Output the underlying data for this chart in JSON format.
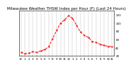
{
  "title": "Milwaukee Weather THSW Index per Hour (F) (Last 24 Hours)",
  "title_fontsize": 4.0,
  "background_color": "#ffffff",
  "line_color": "#ff0000",
  "marker": "s",
  "marker_size": 1.2,
  "linestyle": "--",
  "linewidth": 0.7,
  "hours": [
    0,
    1,
    2,
    3,
    4,
    5,
    6,
    7,
    8,
    9,
    10,
    11,
    12,
    13,
    14,
    15,
    16,
    17,
    18,
    19,
    20,
    21,
    22,
    23
  ],
  "values": [
    28,
    25,
    26,
    30,
    28,
    32,
    35,
    42,
    62,
    82,
    100,
    108,
    118,
    112,
    95,
    78,
    70,
    65,
    55,
    52,
    48,
    45,
    43,
    42
  ],
  "ylim": [
    20,
    130
  ],
  "yticks": [
    20,
    40,
    60,
    80,
    100,
    120
  ],
  "ytick_labels": [
    "20",
    "40",
    "60",
    "80",
    "100",
    "120"
  ],
  "xtick_labels": [
    "12",
    "1",
    "2",
    "3",
    "4",
    "5",
    "6",
    "7",
    "8",
    "9",
    "10",
    "11",
    "12",
    "1",
    "2",
    "3",
    "4",
    "5",
    "6",
    "7",
    "8",
    "9",
    "10",
    "11"
  ],
  "grid_color": "#999999",
  "grid_style": "--",
  "grid_linewidth": 0.3,
  "tick_fontsize": 3.0,
  "axis_linewidth": 0.4
}
